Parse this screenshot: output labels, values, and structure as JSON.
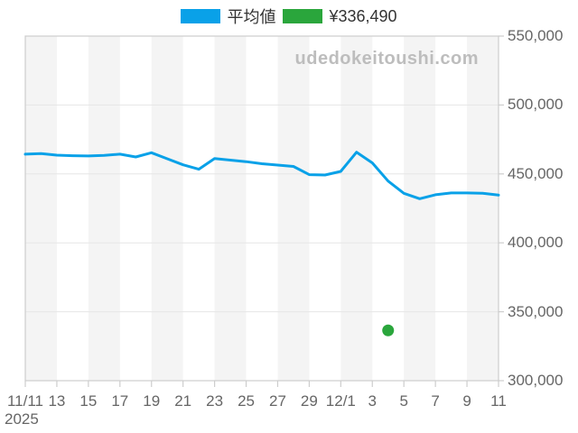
{
  "legend": {
    "series1_label": "平均値",
    "series2_label": "¥336,490"
  },
  "watermark": "udedokeitoushi.com",
  "colors": {
    "line_blue": "#09a1e8",
    "dot_green": "#2aa63c",
    "band_gray": "#f4f4f4",
    "grid": "#e6e6e6",
    "border": "#cdcdcd",
    "axis_text": "#666666",
    "legend_text": "#333333",
    "watermark_text": "#bdbdbd"
  },
  "chart_data": {
    "type": "line",
    "title": "",
    "xlabel": "",
    "ylabel": "",
    "ylim": [
      300000,
      550000
    ],
    "grid": "horizontal",
    "legend_position": "top-center",
    "plot_bands_alternating": true,
    "year_label": "2025",
    "x": [
      "11/11",
      "11/12",
      "11/13",
      "11/14",
      "11/15",
      "11/16",
      "11/17",
      "11/18",
      "11/19",
      "11/20",
      "11/21",
      "11/22",
      "11/23",
      "11/24",
      "11/25",
      "11/26",
      "11/27",
      "11/28",
      "11/29",
      "11/30",
      "12/1",
      "12/2",
      "12/3",
      "12/4",
      "12/5",
      "12/6",
      "12/7",
      "12/8",
      "12/9",
      "12/10",
      "12/11"
    ],
    "series": [
      {
        "name": "平均値",
        "type": "line",
        "color": "#09a1e8",
        "values": [
          464300,
          464700,
          463600,
          463200,
          463000,
          463400,
          464300,
          462300,
          465400,
          461000,
          456600,
          453400,
          461200,
          460000,
          458900,
          457400,
          456400,
          455400,
          449500,
          449200,
          451800,
          465800,
          458000,
          444800,
          435900,
          432000,
          434900,
          436200,
          436200,
          436000,
          434600
        ]
      },
      {
        "name": "¥336,490",
        "type": "scatter",
        "color": "#2aa63c",
        "points": [
          {
            "date": "12/4",
            "value": 336490
          }
        ]
      }
    ],
    "y_ticks": [
      {
        "value": 550000,
        "label": "550,000"
      },
      {
        "value": 500000,
        "label": "500,000"
      },
      {
        "value": 450000,
        "label": "450,000"
      },
      {
        "value": 400000,
        "label": "400,000"
      },
      {
        "value": 350000,
        "label": "350,000"
      },
      {
        "value": 300000,
        "label": "300,000"
      }
    ],
    "x_ticks": [
      {
        "day": 0,
        "label": "11/11"
      },
      {
        "day": 2,
        "label": "13"
      },
      {
        "day": 4,
        "label": "15"
      },
      {
        "day": 6,
        "label": "17"
      },
      {
        "day": 8,
        "label": "19"
      },
      {
        "day": 10,
        "label": "21"
      },
      {
        "day": 12,
        "label": "23"
      },
      {
        "day": 14,
        "label": "25"
      },
      {
        "day": 16,
        "label": "27"
      },
      {
        "day": 18,
        "label": "29"
      },
      {
        "day": 20,
        "label": "12/1"
      },
      {
        "day": 22,
        "label": "3"
      },
      {
        "day": 24,
        "label": "5"
      },
      {
        "day": 26,
        "label": "7"
      },
      {
        "day": 28,
        "label": "9"
      },
      {
        "day": 30,
        "label": "11"
      }
    ]
  }
}
